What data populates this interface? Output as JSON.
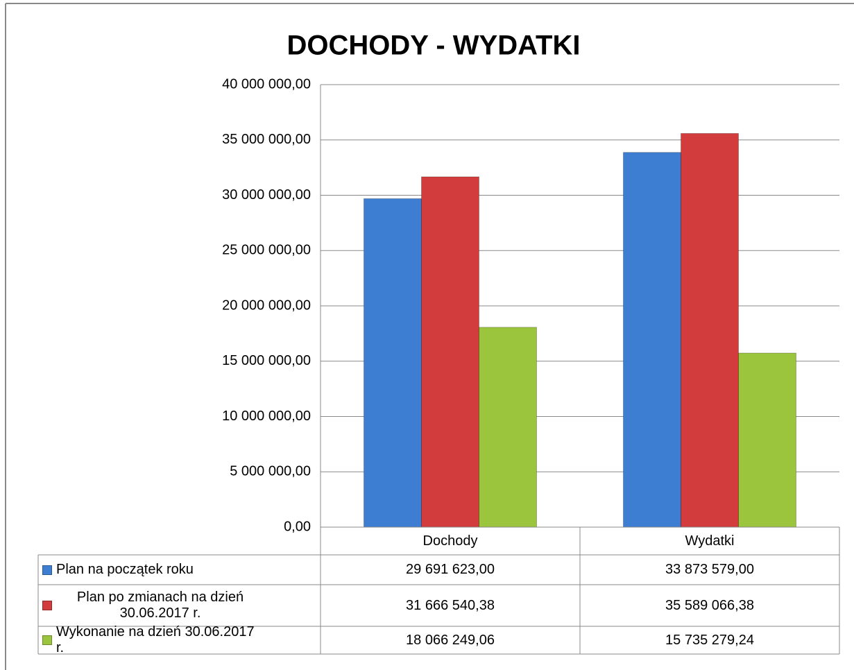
{
  "chart_data": {
    "type": "bar",
    "title": "DOCHODY - WYDATKI",
    "categories": [
      "Dochody",
      "Wydatki"
    ],
    "series": [
      {
        "name": "Plan na początek roku",
        "color": "#3d7ed2",
        "values": [
          29691623.0,
          33873579.0
        ],
        "value_labels": [
          "29 691 623,00",
          "33 873 579,00"
        ]
      },
      {
        "name": "Plan po zmianach na dzień 30.06.2017 r.",
        "color": "#d23c3c",
        "values": [
          31666540.38,
          35589066.38
        ],
        "value_labels": [
          "31 666 540,38",
          "35 589 066,38"
        ]
      },
      {
        "name": "Wykonanie na dzień 30.06.2017 r.",
        "color": "#9bc53d",
        "values": [
          18066249.06,
          15735279.24
        ],
        "value_labels": [
          "18 066 249,06",
          "15 735 279,24"
        ]
      }
    ],
    "ylim": [
      0,
      40000000
    ],
    "yticks": [
      {
        "value": 0,
        "label": "0,00"
      },
      {
        "value": 5000000,
        "label": "5 000 000,00"
      },
      {
        "value": 10000000,
        "label": "10 000 000,00"
      },
      {
        "value": 15000000,
        "label": "15 000 000,00"
      },
      {
        "value": 20000000,
        "label": "20 000 000,00"
      },
      {
        "value": 25000000,
        "label": "25 000 000,00"
      },
      {
        "value": 30000000,
        "label": "30 000 000,00"
      },
      {
        "value": 35000000,
        "label": "35 000 000,00"
      },
      {
        "value": 40000000,
        "label": "40 000 000,00"
      }
    ],
    "grid": true
  }
}
